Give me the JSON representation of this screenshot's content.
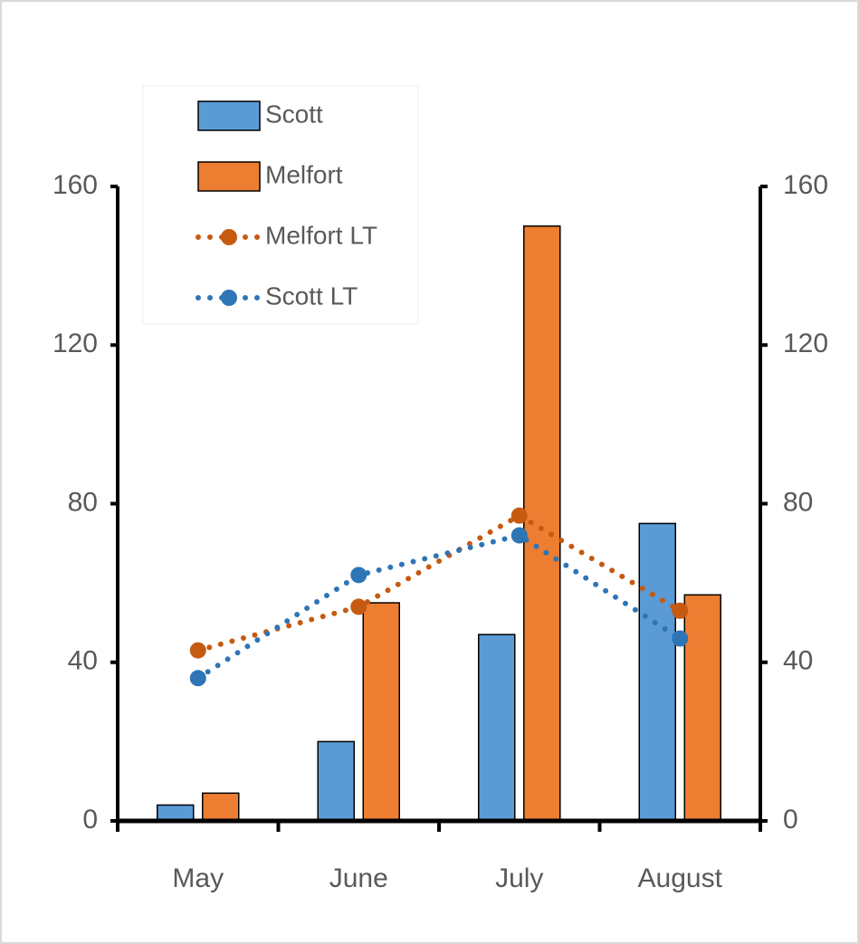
{
  "chart_data": {
    "type": "bar",
    "categories": [
      "May",
      "June",
      "July",
      "August"
    ],
    "series": [
      {
        "name": "Scott",
        "type": "bar",
        "color": "#5b9bd5",
        "values": [
          4,
          20,
          47,
          75
        ]
      },
      {
        "name": "Melfort",
        "type": "bar",
        "color": "#ed7d31",
        "values": [
          7,
          55,
          150,
          57
        ]
      },
      {
        "name": "Melfort LT",
        "type": "line",
        "axis": "y2",
        "color": "#c55a11",
        "values": [
          43,
          54,
          77,
          53
        ]
      },
      {
        "name": "Scott LT",
        "type": "line",
        "axis": "y2",
        "color": "#2e75b6",
        "values": [
          36,
          62,
          72,
          46
        ]
      }
    ],
    "ylim": [
      0,
      160
    ],
    "yticks": [
      0,
      40,
      80,
      120,
      160
    ],
    "y2lim": [
      0,
      160
    ],
    "y2ticks": [
      0,
      40,
      80,
      120,
      160
    ],
    "grid": false
  }
}
